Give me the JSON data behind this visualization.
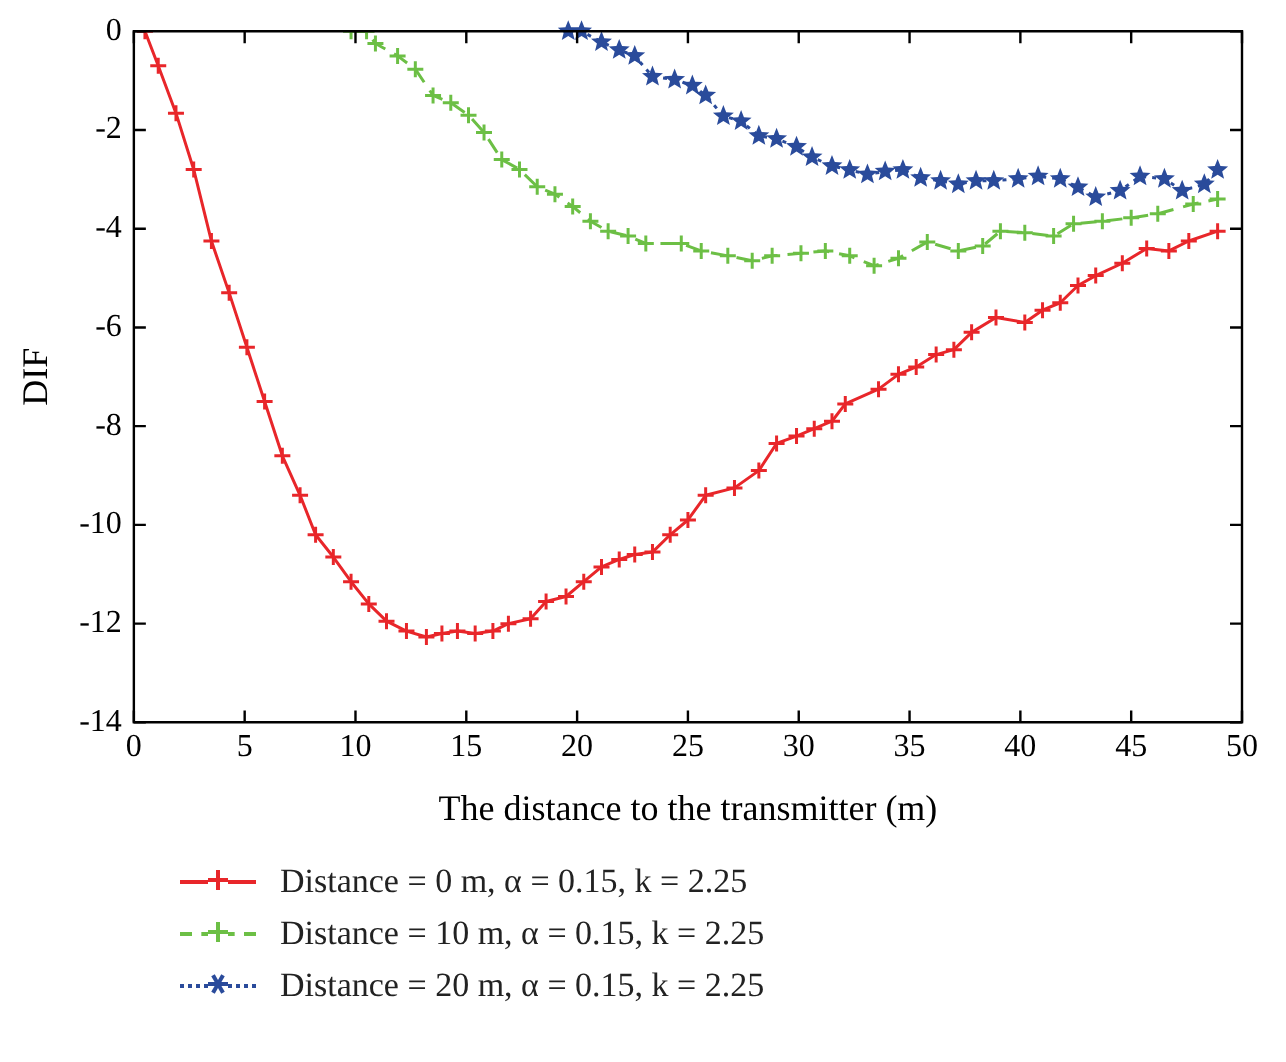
{
  "chart_data": {
    "type": "line",
    "xlabel": "The distance to the transmitter (m)",
    "ylabel": "DIF",
    "xlim": [
      0,
      50
    ],
    "xticks": [
      0,
      5,
      10,
      15,
      20,
      25,
      30,
      35,
      40,
      45,
      50
    ],
    "ylim": [
      -14,
      0
    ],
    "yticks": [
      -14,
      -12,
      -10,
      -8,
      -6,
      -4,
      -2,
      0
    ],
    "grid": false,
    "legend": "bottom",
    "series": [
      {
        "name": "Distance = 0 m, α = 0.15, k = 2.25",
        "color": "#e8262a",
        "marker": "cross",
        "line_style": "solid",
        "x": [
          0.5,
          1.1,
          1.9,
          2.7,
          3.5,
          4.3,
          5.1,
          5.9,
          6.7,
          7.5,
          8.2,
          9.0,
          9.8,
          10.6,
          11.4,
          12.3,
          13.2,
          13.9,
          14.6,
          15.4,
          16.2,
          16.9,
          17.9,
          18.6,
          19.5,
          20.3,
          21.1,
          21.9,
          22.6,
          23.4,
          24.2,
          25.0,
          25.8,
          27.1,
          28.2,
          29.0,
          29.9,
          30.7,
          31.5,
          32.1,
          33.6,
          34.5,
          35.3,
          36.2,
          37.0,
          37.8,
          38.9,
          40.2,
          41.0,
          41.8,
          42.6,
          43.4,
          44.6,
          45.7,
          46.7,
          47.6,
          48.9
        ],
        "values": [
          0,
          -0.7,
          -1.66,
          -2.8,
          -4.25,
          -5.3,
          -6.4,
          -7.5,
          -8.6,
          -9.4,
          -10.2,
          -10.65,
          -11.15,
          -11.6,
          -11.95,
          -12.15,
          -12.27,
          -12.2,
          -12.15,
          -12.2,
          -12.15,
          -12.0,
          -11.9,
          -11.55,
          -11.45,
          -11.15,
          -10.85,
          -10.7,
          -10.6,
          -10.55,
          -10.2,
          -9.9,
          -9.4,
          -9.25,
          -8.9,
          -8.35,
          -8.2,
          -8.05,
          -7.9,
          -7.55,
          -7.25,
          -6.95,
          -6.8,
          -6.55,
          -6.45,
          -6.1,
          -5.8,
          -5.9,
          -5.65,
          -5.5,
          -5.15,
          -4.95,
          -4.7,
          -4.4,
          -4.45,
          -4.25,
          -4.05
        ]
      },
      {
        "name": "Distance = 10 m, α = 0.15, k = 2.25",
        "color": "#6cbf45",
        "marker": "cross",
        "line_style": "dashed",
        "x": [
          9.8,
          10.5,
          10.9,
          11.9,
          12.7,
          13.5,
          14.3,
          15.1,
          15.8,
          16.6,
          17.4,
          18.2,
          19.0,
          19.8,
          20.6,
          21.4,
          22.3,
          23.1,
          24.7,
          25.6,
          26.8,
          27.9,
          28.8,
          30.1,
          31.2,
          32.3,
          33.4,
          34.5,
          35.8,
          37.2,
          38.3,
          39.1,
          40.2,
          41.5,
          42.4,
          43.7,
          45.0,
          46.2,
          47.8,
          48.9
        ],
        "values": [
          0,
          0,
          -0.25,
          -0.5,
          -0.77,
          -1.3,
          -1.45,
          -1.7,
          -2.05,
          -2.6,
          -2.8,
          -3.15,
          -3.3,
          -3.55,
          -3.85,
          -4.05,
          -4.15,
          -4.3,
          -4.3,
          -4.45,
          -4.55,
          -4.65,
          -4.55,
          -4.5,
          -4.45,
          -4.55,
          -4.75,
          -4.6,
          -4.27,
          -4.45,
          -4.35,
          -4.05,
          -4.08,
          -4.15,
          -3.9,
          -3.85,
          -3.78,
          -3.7,
          -3.5,
          -3.4
        ]
      },
      {
        "name": "Distance = 20 m, α = 0.15, k = 2.25",
        "color": "#2a4b9b",
        "marker": "star",
        "line_style": "dotted",
        "x": [
          19.6,
          20.2,
          21.1,
          21.9,
          22.6,
          23.4,
          24.4,
          25.2,
          25.8,
          26.6,
          27.4,
          28.2,
          29.0,
          29.9,
          30.6,
          31.5,
          32.3,
          33.1,
          33.9,
          34.7,
          35.5,
          36.4,
          37.2,
          38.0,
          38.8,
          39.9,
          40.8,
          41.8,
          42.6,
          43.4,
          44.5,
          45.4,
          46.5,
          47.3,
          48.3,
          48.9
        ],
        "values": [
          0,
          0,
          -0.22,
          -0.38,
          -0.5,
          -0.92,
          -0.98,
          -1.1,
          -1.3,
          -1.72,
          -1.82,
          -2.12,
          -2.18,
          -2.34,
          -2.55,
          -2.73,
          -2.81,
          -2.9,
          -2.84,
          -2.81,
          -2.97,
          -3.03,
          -3.1,
          -3.03,
          -3.03,
          -2.99,
          -2.94,
          -2.99,
          -3.16,
          -3.36,
          -3.23,
          -2.94,
          -2.99,
          -3.23,
          -3.1,
          -2.81
        ]
      }
    ]
  }
}
